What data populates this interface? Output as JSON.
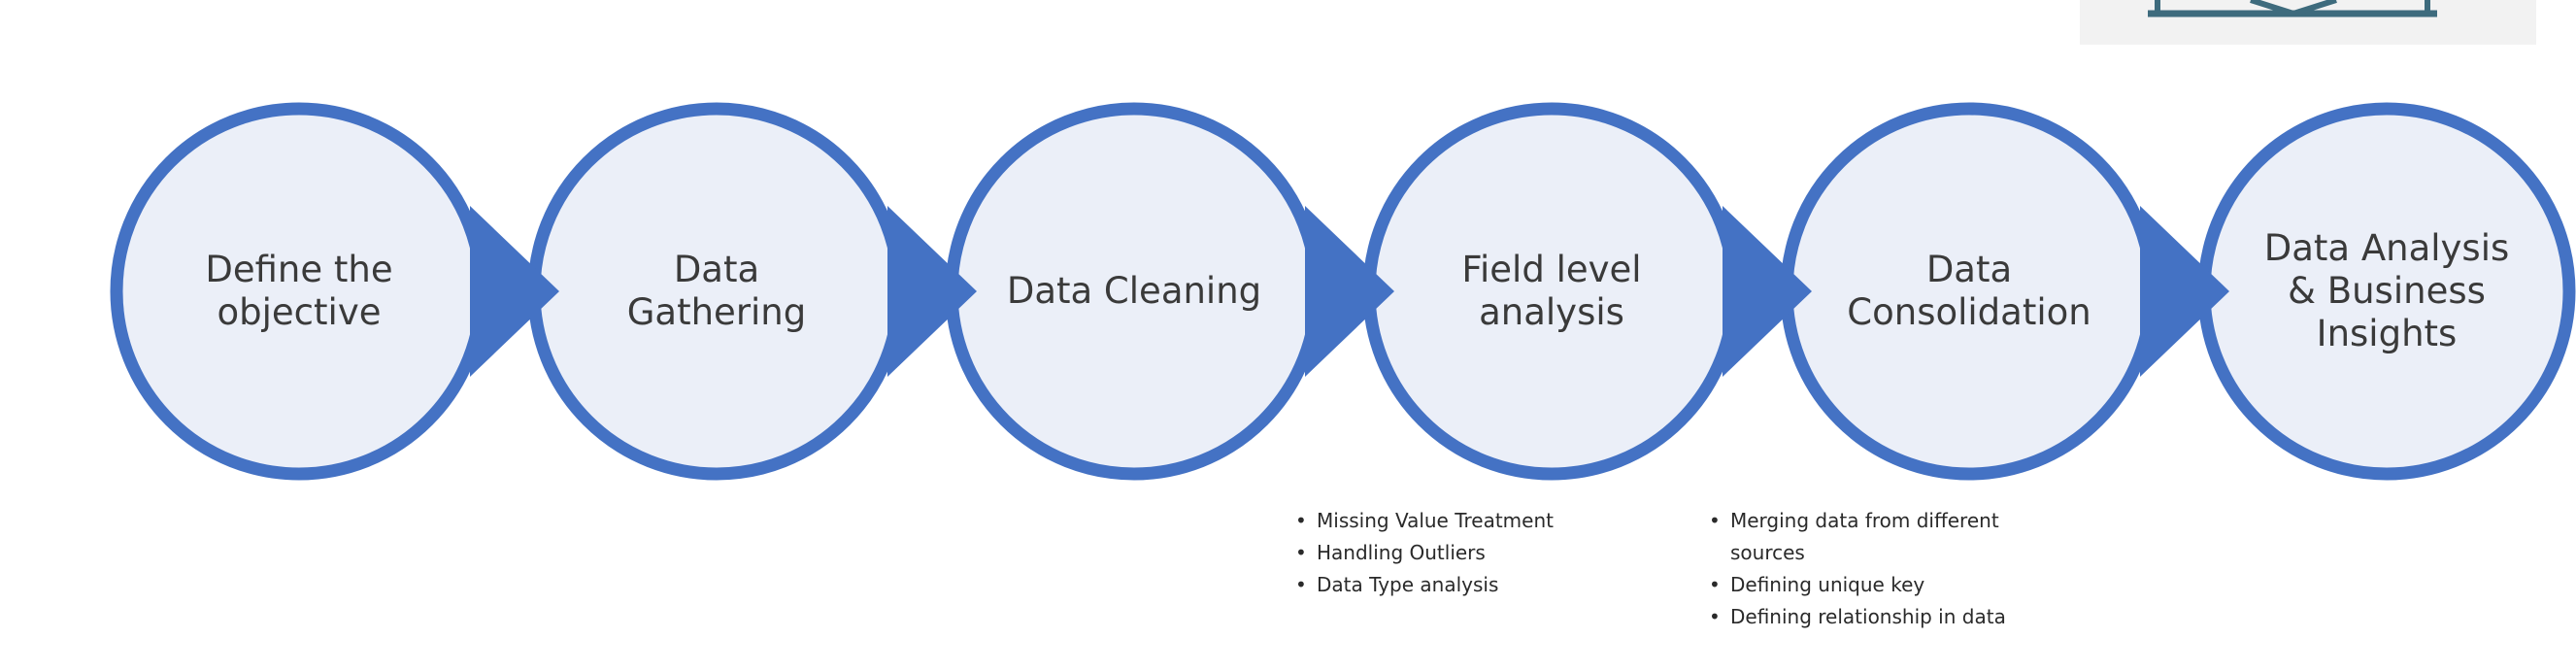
{
  "colors": {
    "circle_fill": "#ebeff8",
    "circle_stroke": "#4472c4",
    "arrow_fill": "#4472c4",
    "label_text": "#3a3a3a",
    "corner_icon_bg": "#f2f2f2",
    "corner_icon_stroke": "#3e6b7d"
  },
  "corner_icon": "monitor-icon",
  "steps": [
    {
      "lines": [
        "Define the",
        "objective"
      ]
    },
    {
      "lines": [
        "Data",
        "Gathering"
      ]
    },
    {
      "lines": [
        "Data Cleaning"
      ]
    },
    {
      "lines": [
        "Field level",
        "analysis"
      ]
    },
    {
      "lines": [
        "Data",
        "Consolidation"
      ]
    },
    {
      "lines": [
        "Data Analysis",
        "& Business",
        "Insights"
      ]
    }
  ],
  "notes": {
    "field_level": [
      "Missing Value Treatment",
      "Handling Outliers",
      "Data Type analysis"
    ],
    "consolidation": [
      "Merging data from different sources",
      "Defining unique key",
      "Defining relationship in data"
    ]
  }
}
